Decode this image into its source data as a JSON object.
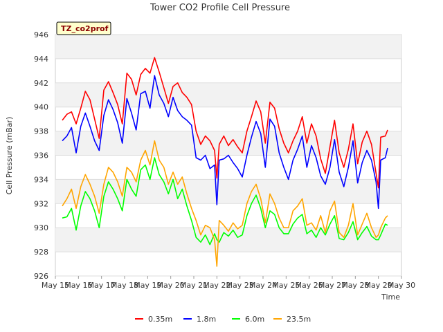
{
  "chart_data": {
    "type": "line",
    "title": "Tower CO2 Profile Cell Pressure",
    "site_badge": "TZ_co2prof",
    "xlabel": "Time",
    "ylabel": "Cell Pressure (mBar)",
    "ylim": [
      926,
      946
    ],
    "y_ticks": [
      926,
      928,
      930,
      932,
      934,
      936,
      938,
      940,
      942,
      944,
      946
    ],
    "xlim": [
      15,
      30
    ],
    "x_ticks": [
      15,
      16,
      17,
      18,
      19,
      20,
      21,
      22,
      23,
      24,
      25,
      26,
      27,
      28,
      29,
      30
    ],
    "x_tick_labels": [
      "May 15",
      "May 16",
      "May 17",
      "May 18",
      "May 19",
      "May 20",
      "May 21",
      "May 22",
      "May 23",
      "May 24",
      "May 25",
      "May 26",
      "May 27",
      "May 28",
      "May 29",
      "May 30"
    ],
    "grid": true,
    "legend_position": "bottom",
    "series": [
      {
        "name": "0.35m",
        "color": "#ff0000",
        "x": [
          15.3,
          15.5,
          15.7,
          15.9,
          16.1,
          16.3,
          16.5,
          16.7,
          16.9,
          17.1,
          17.3,
          17.5,
          17.7,
          17.9,
          18.1,
          18.3,
          18.5,
          18.7,
          18.9,
          19.1,
          19.3,
          19.5,
          19.7,
          19.9,
          20.1,
          20.3,
          20.5,
          20.7,
          20.9,
          21.1,
          21.3,
          21.5,
          21.7,
          21.9,
          22.0,
          22.1,
          22.3,
          22.5,
          22.7,
          22.9,
          23.1,
          23.3,
          23.5,
          23.7,
          23.9,
          24.1,
          24.3,
          24.5,
          24.7,
          24.9,
          25.1,
          25.3,
          25.5,
          25.7,
          25.9,
          26.1,
          26.3,
          26.5,
          26.7,
          26.9,
          27.1,
          27.3,
          27.5,
          27.7,
          27.9,
          28.1,
          28.3,
          28.5,
          28.7,
          28.9,
          29.0,
          29.1,
          29.3,
          29.4
        ],
        "values": [
          938.9,
          939.4,
          939.6,
          938.6,
          939.9,
          941.3,
          940.6,
          939.0,
          937.4,
          941.4,
          942.1,
          941.2,
          940.2,
          938.6,
          942.8,
          942.3,
          941.0,
          942.7,
          943.2,
          942.8,
          944.1,
          942.9,
          941.6,
          940.3,
          941.7,
          942.0,
          941.2,
          940.8,
          940.2,
          938.0,
          936.9,
          937.6,
          937.2,
          936.4,
          934.1,
          936.9,
          937.6,
          936.8,
          937.3,
          936.7,
          936.2,
          938.0,
          939.2,
          940.5,
          939.6,
          937.0,
          940.4,
          939.9,
          938.2,
          937.0,
          936.2,
          937.2,
          938.0,
          939.2,
          937.0,
          938.6,
          937.6,
          935.7,
          934.5,
          936.7,
          938.9,
          936.2,
          935.0,
          936.5,
          938.6,
          935.3,
          937.1,
          938.0,
          936.9,
          934.5,
          933.3,
          937.5,
          937.6,
          938.1
        ]
      },
      {
        "name": "1.8m",
        "color": "#0000ff",
        "x": [
          15.3,
          15.5,
          15.7,
          15.9,
          16.1,
          16.3,
          16.5,
          16.7,
          16.9,
          17.1,
          17.3,
          17.5,
          17.7,
          17.9,
          18.1,
          18.3,
          18.5,
          18.7,
          18.9,
          19.1,
          19.3,
          19.5,
          19.7,
          19.9,
          20.1,
          20.3,
          20.5,
          20.7,
          20.9,
          21.1,
          21.3,
          21.5,
          21.7,
          21.9,
          22.0,
          22.1,
          22.3,
          22.5,
          22.7,
          22.9,
          23.1,
          23.3,
          23.5,
          23.7,
          23.9,
          24.1,
          24.3,
          24.5,
          24.7,
          24.9,
          25.1,
          25.3,
          25.5,
          25.7,
          25.9,
          26.1,
          26.3,
          26.5,
          26.7,
          26.9,
          27.1,
          27.3,
          27.5,
          27.7,
          27.9,
          28.1,
          28.3,
          28.5,
          28.7,
          28.9,
          29.0,
          29.1,
          29.3,
          29.4
        ],
        "values": [
          937.2,
          937.6,
          938.3,
          936.2,
          938.4,
          939.5,
          938.4,
          937.2,
          936.4,
          939.3,
          940.6,
          939.8,
          938.7,
          937.0,
          940.7,
          939.5,
          938.1,
          941.1,
          941.3,
          939.9,
          942.6,
          941.0,
          940.3,
          939.2,
          940.8,
          939.7,
          939.2,
          938.9,
          938.5,
          935.8,
          935.6,
          936.0,
          934.9,
          935.2,
          931.9,
          935.6,
          935.7,
          936.0,
          935.4,
          934.9,
          934.2,
          936.0,
          937.5,
          938.8,
          937.8,
          935.0,
          939.0,
          938.4,
          936.2,
          935.0,
          934.0,
          935.6,
          936.5,
          937.6,
          935.0,
          936.8,
          935.8,
          934.3,
          933.6,
          935.0,
          937.3,
          934.6,
          933.4,
          935.0,
          937.2,
          933.7,
          935.4,
          936.4,
          935.6,
          933.8,
          931.6,
          935.6,
          935.8,
          936.6
        ]
      },
      {
        "name": "6.0m",
        "color": "#00ff00",
        "x": [
          15.3,
          15.5,
          15.7,
          15.9,
          16.1,
          16.3,
          16.5,
          16.7,
          16.9,
          17.1,
          17.3,
          17.5,
          17.7,
          17.9,
          18.1,
          18.3,
          18.5,
          18.7,
          18.9,
          19.1,
          19.3,
          19.5,
          19.7,
          19.9,
          20.1,
          20.3,
          20.5,
          20.7,
          20.9,
          21.1,
          21.3,
          21.5,
          21.7,
          21.9,
          22.0,
          22.1,
          22.3,
          22.5,
          22.7,
          22.9,
          23.1,
          23.3,
          23.5,
          23.7,
          23.9,
          24.1,
          24.3,
          24.5,
          24.7,
          24.9,
          25.1,
          25.3,
          25.5,
          25.7,
          25.9,
          26.1,
          26.3,
          26.5,
          26.7,
          26.9,
          27.1,
          27.3,
          27.5,
          27.7,
          27.9,
          28.1,
          28.3,
          28.5,
          28.7,
          28.9,
          29.0,
          29.1,
          29.3,
          29.4
        ],
        "values": [
          930.8,
          930.9,
          931.6,
          929.8,
          931.8,
          933.0,
          932.4,
          931.4,
          930.0,
          932.6,
          933.8,
          933.2,
          932.4,
          931.4,
          934.0,
          933.2,
          932.6,
          934.8,
          935.2,
          934.0,
          935.8,
          934.4,
          933.8,
          932.8,
          934.0,
          932.4,
          933.2,
          931.8,
          930.6,
          929.2,
          928.8,
          929.4,
          928.6,
          929.5,
          929.0,
          928.8,
          929.6,
          929.3,
          929.8,
          929.2,
          929.4,
          931.0,
          932.0,
          932.7,
          931.6,
          930.0,
          931.4,
          931.1,
          930.0,
          929.5,
          929.5,
          930.3,
          930.8,
          931.1,
          929.5,
          929.8,
          929.2,
          930.0,
          929.4,
          930.3,
          931.0,
          929.1,
          929.0,
          929.6,
          930.5,
          929.0,
          929.6,
          930.1,
          929.3,
          929.0,
          929.0,
          929.4,
          930.3,
          930.2
        ]
      },
      {
        "name": "23.5m",
        "color": "#ffa500",
        "x": [
          15.3,
          15.5,
          15.7,
          15.9,
          16.1,
          16.3,
          16.5,
          16.7,
          16.9,
          17.1,
          17.3,
          17.5,
          17.7,
          17.9,
          18.1,
          18.3,
          18.5,
          18.7,
          18.9,
          19.1,
          19.3,
          19.5,
          19.7,
          19.9,
          20.1,
          20.3,
          20.5,
          20.7,
          20.9,
          21.1,
          21.3,
          21.5,
          21.7,
          21.9,
          22.0,
          22.1,
          22.3,
          22.5,
          22.7,
          22.9,
          23.1,
          23.3,
          23.5,
          23.7,
          23.9,
          24.1,
          24.3,
          24.5,
          24.7,
          24.9,
          25.1,
          25.3,
          25.5,
          25.7,
          25.9,
          26.1,
          26.3,
          26.5,
          26.7,
          26.9,
          27.1,
          27.3,
          27.5,
          27.7,
          27.9,
          28.1,
          28.3,
          28.5,
          28.7,
          28.9,
          29.0,
          29.1,
          29.3,
          29.4
        ],
        "values": [
          931.8,
          932.4,
          933.2,
          931.6,
          933.4,
          934.4,
          933.6,
          932.6,
          931.2,
          933.6,
          935.0,
          934.6,
          933.8,
          932.6,
          935.0,
          934.6,
          933.8,
          935.6,
          936.4,
          935.2,
          937.2,
          935.6,
          935.0,
          933.6,
          934.6,
          933.6,
          934.2,
          932.8,
          931.6,
          930.6,
          929.4,
          930.2,
          930.0,
          929.0,
          926.8,
          930.6,
          930.2,
          929.7,
          930.4,
          929.9,
          930.2,
          932.0,
          933.0,
          933.6,
          932.4,
          930.4,
          932.8,
          932.0,
          930.8,
          930.0,
          930.0,
          931.4,
          931.8,
          932.4,
          930.2,
          930.4,
          929.8,
          931.0,
          929.6,
          931.4,
          932.2,
          929.6,
          929.2,
          930.2,
          932.0,
          929.4,
          930.3,
          931.2,
          930.0,
          929.2,
          929.4,
          930.0,
          930.8,
          931.0
        ]
      }
    ]
  }
}
